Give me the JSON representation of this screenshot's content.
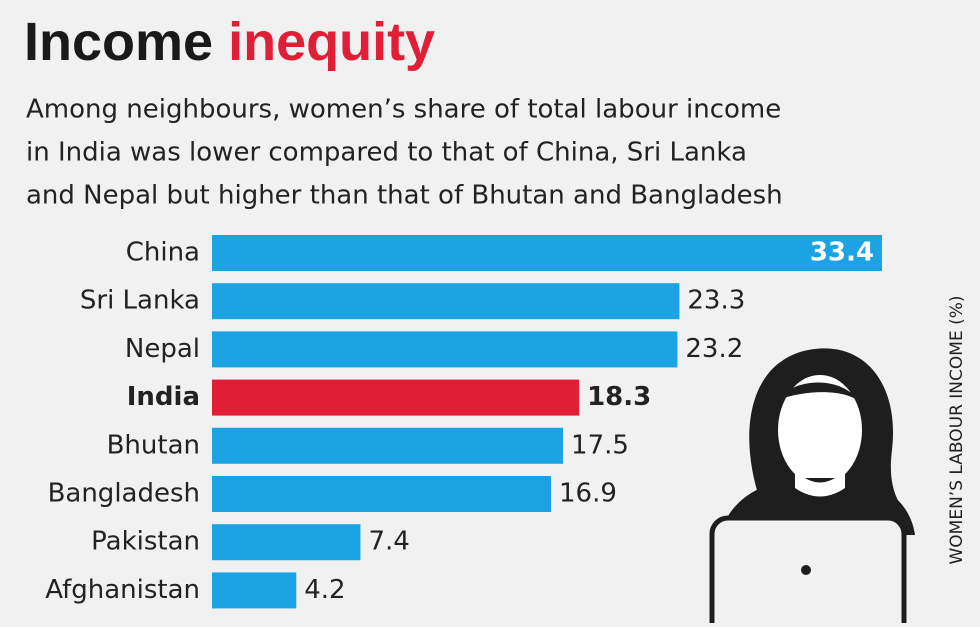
{
  "chart_data": {
    "type": "bar",
    "orientation": "horizontal",
    "title": "Income",
    "title_highlight": "inequity",
    "title_highlight_color": "#e01f36",
    "subtitle": [
      "Among neighbours, women’s share of total labour income",
      "in India was lower compared to that of China, Sri Lanka",
      "and Nepal but higher than that of Bhutan and Bangladesh"
    ],
    "axis_label": "WOMEN’S LABOUR INCOME (%)",
    "categories": [
      "China",
      "Sri Lanka",
      "Nepal",
      "India",
      "Bhutan",
      "Bangladesh",
      "Pakistan",
      "Afghanistan"
    ],
    "values": [
      33.4,
      23.3,
      23.2,
      18.3,
      17.5,
      16.9,
      7.4,
      4.2
    ],
    "colors": [
      "#1ba3e3",
      "#1ba3e3",
      "#1ba3e3",
      "#e01f36",
      "#1ba3e3",
      "#1ba3e3",
      "#1ba3e3",
      "#1ba3e3"
    ]
  }
}
